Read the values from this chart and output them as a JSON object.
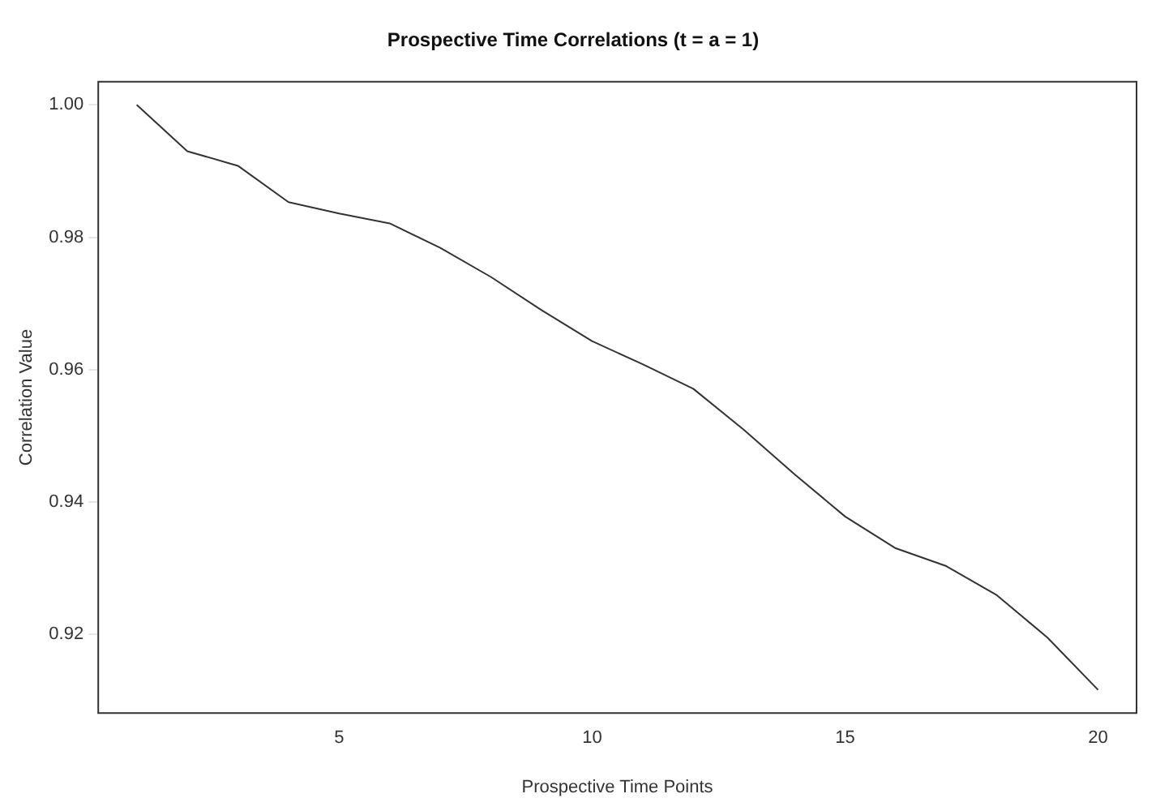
{
  "chart_data": {
    "type": "line",
    "title": "Prospective Time Correlations (t = a = 1)",
    "xlabel": "Prospective Time Points",
    "ylabel": "Correlation Value",
    "x": [
      1,
      2,
      3,
      4,
      5,
      6,
      7,
      8,
      9,
      10,
      11,
      12,
      13,
      14,
      15,
      16,
      17,
      18,
      19,
      20
    ],
    "series": [
      {
        "color": "#333333",
        "values": [
          1.0,
          0.993,
          0.9908,
          0.9853,
          0.9836,
          0.9821,
          0.9784,
          0.974,
          0.969,
          0.9643,
          0.9608,
          0.9571,
          0.9509,
          0.9442,
          0.9378,
          0.933,
          0.9303,
          0.9259,
          0.9195,
          0.9116
        ]
      }
    ],
    "xlim": [
      0.24,
      20.76
    ],
    "xticks": [
      5,
      10,
      15,
      20
    ],
    "ylim": [
      0.9081,
      1.0035
    ],
    "yticks": [
      0.92,
      0.94,
      0.96,
      0.98,
      {
        "value": 1.0,
        "label": "1.00"
      }
    ],
    "grid": false,
    "legend": false,
    "marker": "none",
    "line_style": "solid"
  }
}
